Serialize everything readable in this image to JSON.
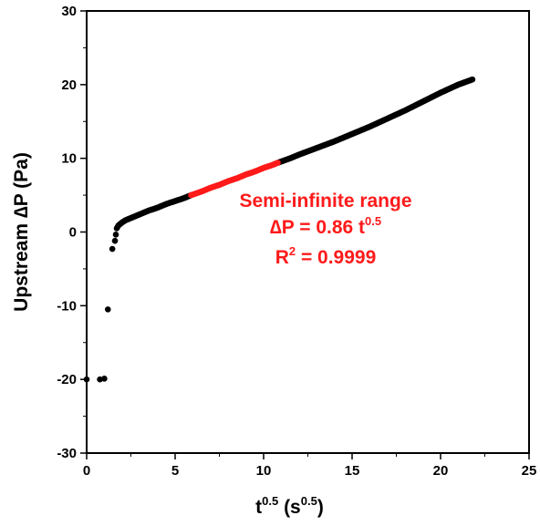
{
  "chart_data": {
    "type": "scatter",
    "title": "",
    "xlabel": {
      "base": "t",
      "base_sup": "0.5",
      "unit_open": " (s",
      "unit_sup": "0.5",
      "unit_close": ")"
    },
    "ylabel": "Upstream ∆P (Pa)",
    "xlim": [
      0,
      25
    ],
    "ylim": [
      -30,
      30
    ],
    "x_ticks": [
      0,
      5,
      10,
      15,
      20,
      25
    ],
    "x_tick_labels": [
      "0",
      "5",
      "10",
      "15",
      "20",
      "25"
    ],
    "y_ticks": [
      -30,
      -20,
      -10,
      0,
      10,
      20,
      30
    ],
    "y_tick_labels": [
      "-30",
      "-20",
      "-10",
      "0",
      "10",
      "20",
      "30"
    ],
    "grid": false,
    "colors": {
      "data": "#000000",
      "fit": "#ff1a1a"
    },
    "series": [
      {
        "color": "#000000",
        "x": [
          0.0,
          0.75,
          1.0,
          1.2,
          1.45,
          1.6,
          1.7,
          1.8,
          1.9,
          2.0,
          2.2,
          2.4,
          2.6,
          2.8,
          3.0,
          3.5,
          4.0,
          4.5,
          5.0,
          5.5,
          5.9,
          10.8,
          11.5,
          12.0,
          13.0,
          14.0,
          15.0,
          16.0,
          17.0,
          18.0,
          19.0,
          20.0,
          21.0,
          21.8
        ],
        "y": [
          -20.0,
          -20.0,
          -19.9,
          -10.5,
          -2.3,
          -1.2,
          0.5,
          0.9,
          1.1,
          1.3,
          1.6,
          1.8,
          2.0,
          2.2,
          2.4,
          2.9,
          3.3,
          3.8,
          4.2,
          4.6,
          5.0,
          9.4,
          10.0,
          10.5,
          11.4,
          12.3,
          13.3,
          14.3,
          15.4,
          16.5,
          17.7,
          18.9,
          20.0,
          20.7
        ]
      },
      {
        "color": "#ff1a1a",
        "x": [
          5.9,
          6.5,
          7.0,
          7.5,
          8.0,
          8.5,
          9.0,
          9.5,
          10.0,
          10.5,
          10.8
        ],
        "y": [
          5.0,
          5.5,
          6.0,
          6.4,
          6.9,
          7.3,
          7.8,
          8.2,
          8.7,
          9.1,
          9.4
        ]
      }
    ],
    "annotation": {
      "line1": "Semi-infinite range",
      "line2_prefix": "∆P = 0.86 t",
      "line2_sup": "0.5",
      "line3_prefix": "R",
      "line3_sup": "2",
      "line3_suffix": " = 0.9999"
    }
  }
}
